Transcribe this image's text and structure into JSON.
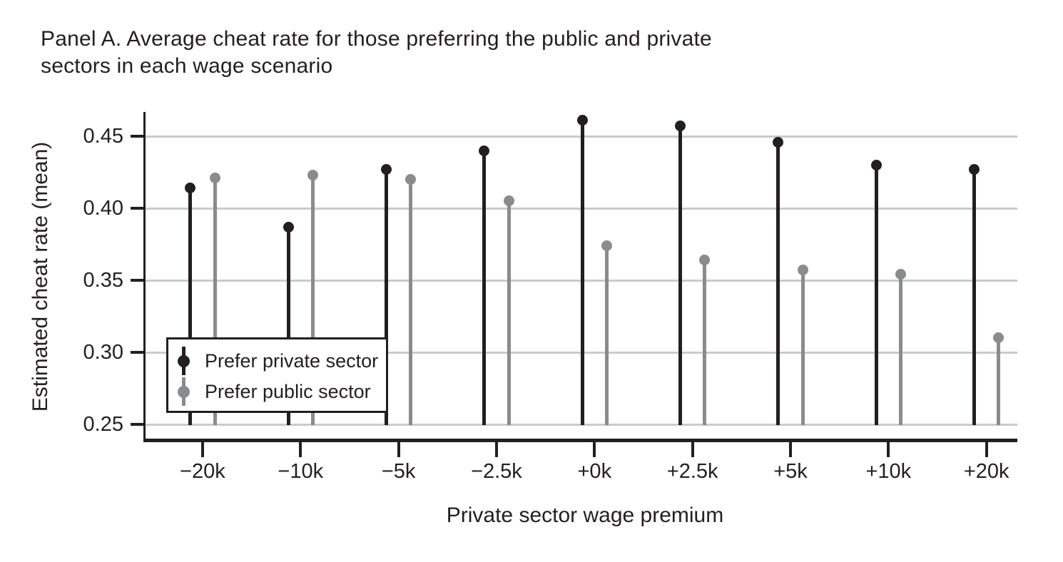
{
  "figure": {
    "title_line1": "Panel A. Average cheat rate for those preferring the public and private",
    "title_line2": "sectors in each wage scenario"
  },
  "chart_data": {
    "type": "lollipop",
    "title": "Panel A. Average cheat rate for those preferring the public and private sectors in each wage scenario",
    "xlabel": "Private sector wage premium",
    "ylabel": "Estimated cheat rate (mean)",
    "categories": [
      "−20k",
      "−10k",
      "−5k",
      "−2.5k",
      "+0k",
      "+2.5k",
      "+5k",
      "+10k",
      "+20k"
    ],
    "series": [
      {
        "name": "Prefer private sector",
        "key": "private",
        "color": "#231f20",
        "values": [
          0.414,
          0.387,
          0.427,
          0.44,
          0.461,
          0.457,
          0.446,
          0.43,
          0.427
        ]
      },
      {
        "name": "Prefer public sector",
        "key": "public",
        "color": "#8a8b8d",
        "values": [
          0.421,
          0.423,
          0.42,
          0.405,
          0.374,
          0.364,
          0.357,
          0.354,
          0.31
        ]
      }
    ],
    "yticks": [
      {
        "label": "0.45",
        "value": 0.45
      },
      {
        "label": "0.40",
        "value": 0.4
      },
      {
        "label": "0.35",
        "value": 0.35
      },
      {
        "label": "0.30",
        "value": 0.3
      },
      {
        "label": "0.25",
        "value": 0.25
      }
    ],
    "ylim": [
      0.25,
      0.47
    ],
    "baseline": 0.25,
    "grid": true,
    "legend_position": "lower-left",
    "colors": {
      "axis": "#231f20",
      "gridline": "#c9cacb",
      "background": "#ffffff"
    }
  }
}
